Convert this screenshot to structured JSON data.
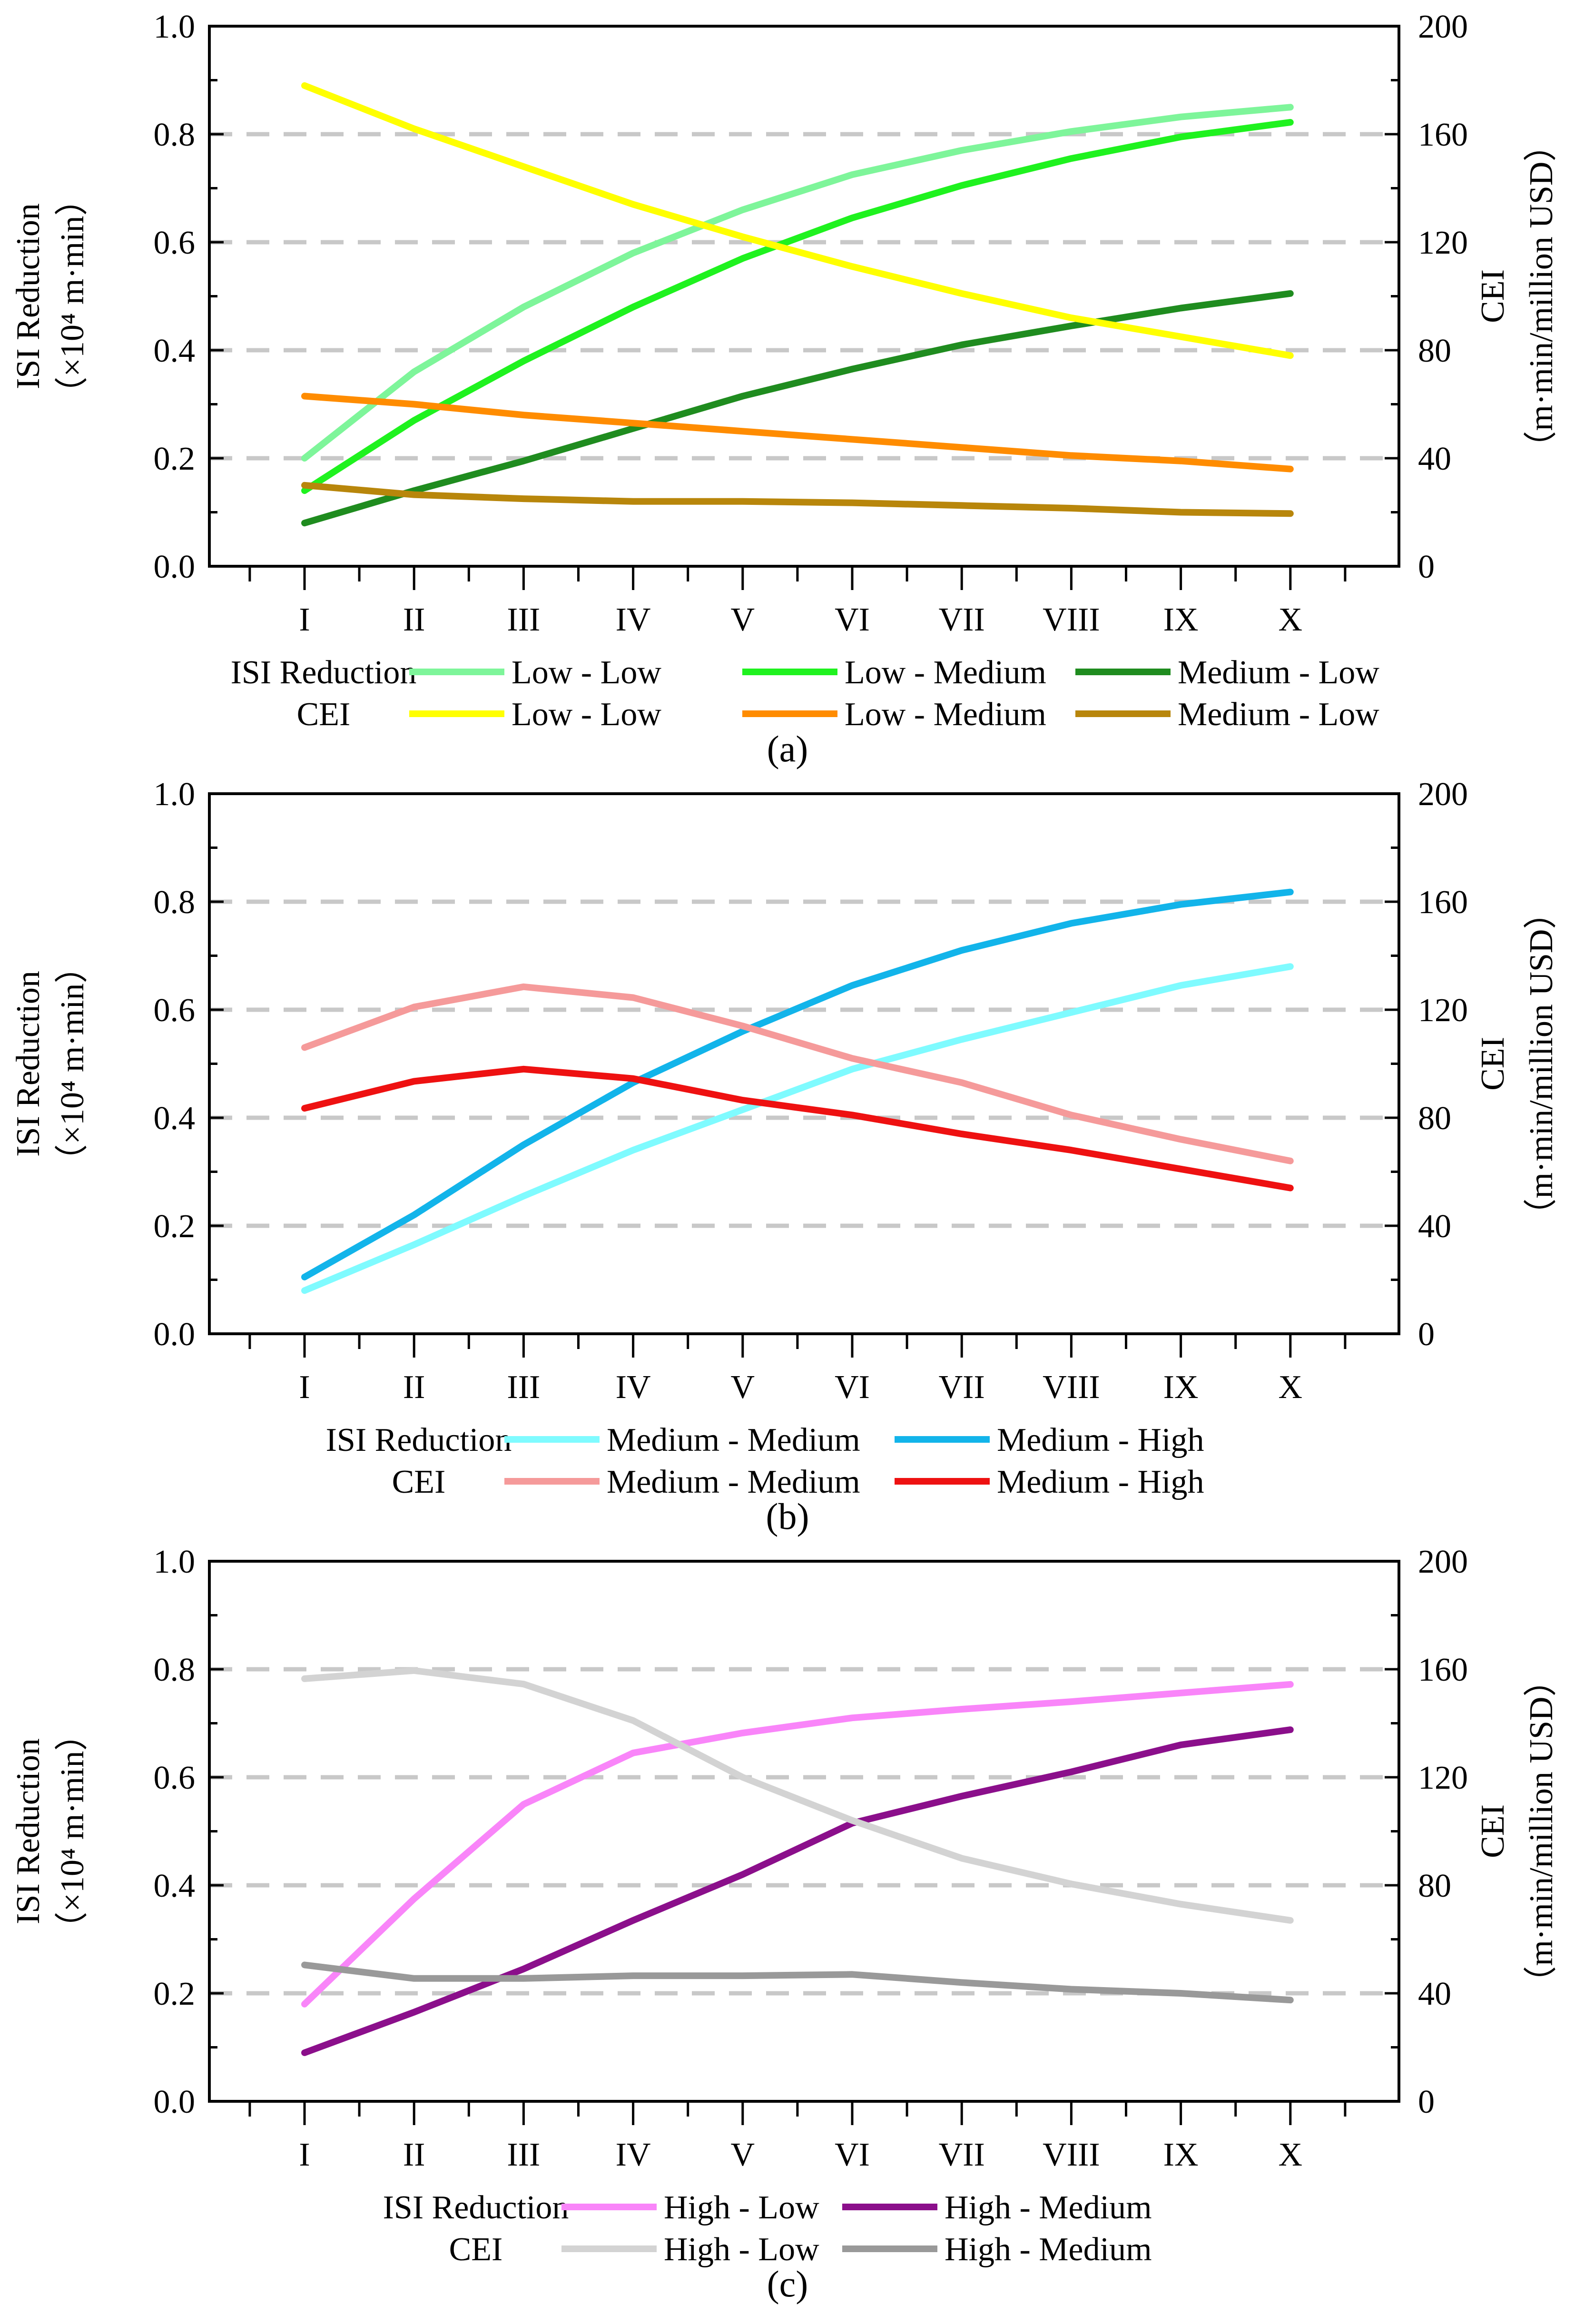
{
  "chart_data": [
    {
      "type": "line",
      "panel_label": "(a)",
      "categories": [
        "I",
        "II",
        "III",
        "IV",
        "V",
        "VI",
        "VII",
        "VIII",
        "IX",
        "X"
      ],
      "ylabel_left": "ISI Reduction",
      "ylabel_left_unit": "（×10⁴ m·min）",
      "ylabel_right": "CEI",
      "ylabel_right_unit": "（m·min/million USD）",
      "ylim_left": [
        0,
        1.0
      ],
      "ylim_right": [
        0,
        200
      ],
      "yticks_left": [
        "0.0",
        "0.2",
        "0.4",
        "0.6",
        "0.8",
        "1.0"
      ],
      "yticks_right": [
        "0",
        "40",
        "80",
        "120",
        "160",
        "200"
      ],
      "grid": "dashed horizontal at 0.2, 0.4, 0.6, 0.8",
      "legend_row_labels": [
        "ISI Reduction",
        "CEI"
      ],
      "series": [
        {
          "name": "Low - Low",
          "group": "ISI Reduction",
          "axis": "left",
          "color": "#7ef59a",
          "values": [
            0.2,
            0.36,
            0.48,
            0.58,
            0.66,
            0.725,
            0.77,
            0.805,
            0.832,
            0.85
          ]
        },
        {
          "name": "Low - Medium",
          "group": "ISI Reduction",
          "axis": "left",
          "color": "#1ff21f",
          "values": [
            0.14,
            0.27,
            0.38,
            0.48,
            0.57,
            0.645,
            0.705,
            0.755,
            0.795,
            0.822
          ]
        },
        {
          "name": "Medium - Low",
          "group": "ISI Reduction",
          "axis": "left",
          "color": "#1f8c1f",
          "values": [
            0.08,
            0.14,
            0.195,
            0.255,
            0.315,
            0.365,
            0.41,
            0.445,
            0.478,
            0.505
          ]
        },
        {
          "name": "Low - Low",
          "group": "CEI",
          "axis": "right",
          "color": "#ffff00",
          "values": [
            178,
            162,
            148,
            134,
            122,
            111,
            101,
            92,
            85,
            78
          ]
        },
        {
          "name": "Low - Medium",
          "group": "CEI",
          "axis": "right",
          "color": "#ff8c00",
          "values": [
            63,
            60,
            56,
            53,
            50,
            47,
            44,
            41,
            39,
            36
          ]
        },
        {
          "name": "Medium - Low",
          "group": "CEI",
          "axis": "right",
          "color": "#b8860b",
          "values": [
            30,
            26.5,
            25,
            24,
            24,
            23.5,
            22.5,
            21.5,
            20,
            19.5
          ]
        }
      ]
    },
    {
      "type": "line",
      "panel_label": "(b)",
      "categories": [
        "I",
        "II",
        "III",
        "IV",
        "V",
        "VI",
        "VII",
        "VIII",
        "IX",
        "X"
      ],
      "ylabel_left": "ISI Reduction",
      "ylabel_left_unit": "（×10⁴ m·min）",
      "ylabel_right": "CEI",
      "ylabel_right_unit": "（m·min/million USD）",
      "ylim_left": [
        0,
        1.0
      ],
      "ylim_right": [
        0,
        200
      ],
      "yticks_left": [
        "0.0",
        "0.2",
        "0.4",
        "0.6",
        "0.8",
        "1.0"
      ],
      "yticks_right": [
        "0",
        "40",
        "80",
        "120",
        "160",
        "200"
      ],
      "grid": "dashed horizontal at 0.2, 0.4, 0.6, 0.8",
      "legend_row_labels": [
        "ISI Reduction",
        "CEI"
      ],
      "series": [
        {
          "name": "Medium - Medium",
          "group": "ISI Reduction",
          "axis": "left",
          "color": "#7ffbff",
          "values": [
            0.08,
            0.165,
            0.255,
            0.34,
            0.415,
            0.49,
            0.545,
            0.595,
            0.645,
            0.68
          ]
        },
        {
          "name": "Medium - High",
          "group": "ISI Reduction",
          "axis": "left",
          "color": "#12b4ea",
          "values": [
            0.105,
            0.22,
            0.35,
            0.465,
            0.56,
            0.645,
            0.71,
            0.76,
            0.795,
            0.818
          ]
        },
        {
          "name": "Medium - Medium",
          "group": "CEI",
          "axis": "right",
          "color": "#f59a9a",
          "values": [
            106,
            121,
            128.5,
            124.5,
            114,
            102,
            93,
            81,
            72,
            64
          ]
        },
        {
          "name": "Medium - High",
          "group": "CEI",
          "axis": "right",
          "color": "#ee1111",
          "values": [
            83.5,
            93.5,
            98,
            94.5,
            86.5,
            81,
            74,
            68,
            61,
            54
          ]
        }
      ]
    },
    {
      "type": "line",
      "panel_label": "(c)",
      "categories": [
        "I",
        "II",
        "III",
        "IV",
        "V",
        "VI",
        "VII",
        "VIII",
        "IX",
        "X"
      ],
      "ylabel_left": "ISI Reduction",
      "ylabel_left_unit": "（×10⁴ m·min）",
      "ylabel_right": "CEI",
      "ylabel_right_unit": "（m·min/million USD）",
      "ylim_left": [
        0,
        1.0
      ],
      "ylim_right": [
        0,
        200
      ],
      "yticks_left": [
        "0.0",
        "0.2",
        "0.4",
        "0.6",
        "0.8",
        "1.0"
      ],
      "yticks_right": [
        "0",
        "40",
        "80",
        "120",
        "160",
        "200"
      ],
      "grid": "dashed horizontal at 0.2, 0.4, 0.6, 0.8",
      "legend_row_labels": [
        "ISI Reduction",
        "CEI"
      ],
      "series": [
        {
          "name": "High - Low",
          "group": "ISI Reduction",
          "axis": "left",
          "color": "#f985f9",
          "values": [
            0.18,
            0.375,
            0.55,
            0.645,
            0.682,
            0.71,
            0.726,
            0.74,
            0.756,
            0.772
          ]
        },
        {
          "name": "High - Medium",
          "group": "ISI Reduction",
          "axis": "left",
          "color": "#8b0f8b",
          "values": [
            0.09,
            0.165,
            0.245,
            0.335,
            0.42,
            0.515,
            0.565,
            0.61,
            0.66,
            0.688
          ]
        },
        {
          "name": "High - Low",
          "group": "CEI",
          "axis": "right",
          "color": "#d3d3d3",
          "values": [
            156.5,
            159.5,
            154.5,
            141,
            120,
            104,
            90,
            80.5,
            73,
            67
          ]
        },
        {
          "name": "High - Medium",
          "group": "CEI",
          "axis": "right",
          "color": "#999999",
          "values": [
            50.5,
            45.5,
            45.5,
            46.5,
            46.5,
            47,
            44,
            41.5,
            40,
            37.5
          ]
        }
      ]
    }
  ]
}
